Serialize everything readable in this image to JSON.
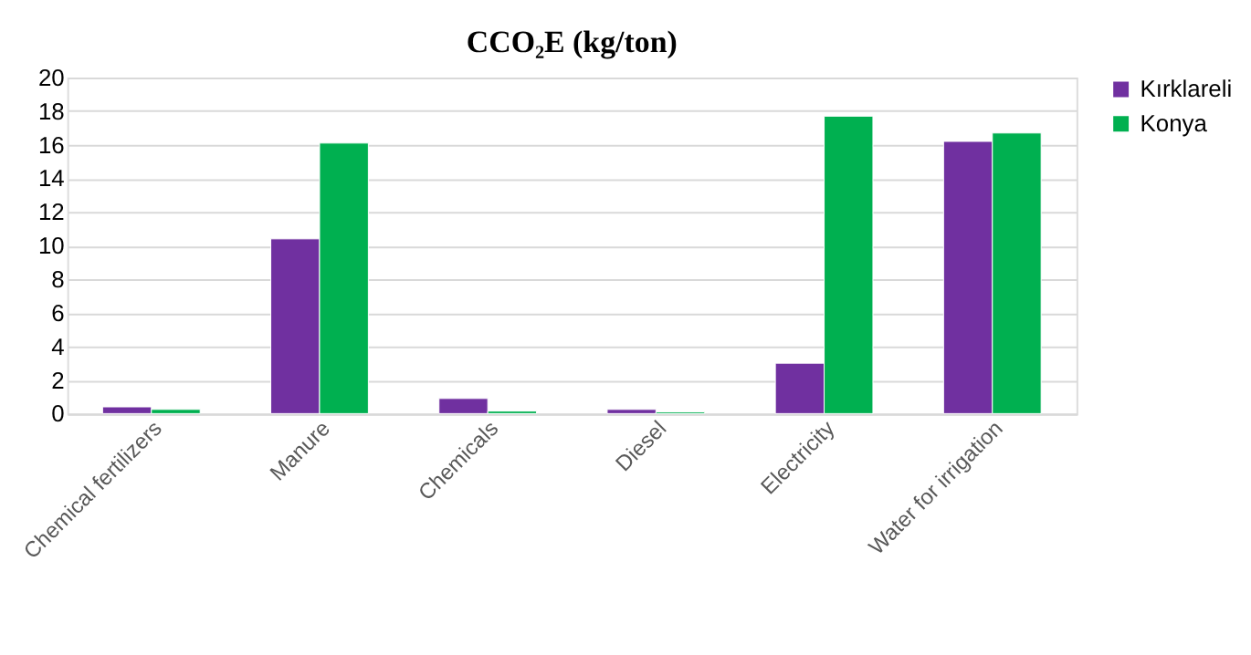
{
  "chart_data": {
    "type": "bar",
    "title": "CCO₂E (kg/ton)",
    "categories": [
      "Chemical fertilizers",
      "Manure",
      "Chemicals",
      "Diesel",
      "Electricity",
      "Water for irrigation"
    ],
    "series": [
      {
        "name": "Kırklareli",
        "color": "#7030a0",
        "values": [
          0.4,
          10.4,
          0.9,
          0.25,
          3.0,
          16.2
        ]
      },
      {
        "name": "Konya",
        "color": "#00b050",
        "values": [
          0.25,
          16.1,
          0.15,
          0.1,
          17.7,
          16.7
        ]
      }
    ],
    "ylim": [
      0,
      20
    ],
    "yticks": [
      0,
      2,
      4,
      6,
      8,
      10,
      12,
      14,
      16,
      18,
      20
    ],
    "grid": "y",
    "legend": "right"
  }
}
